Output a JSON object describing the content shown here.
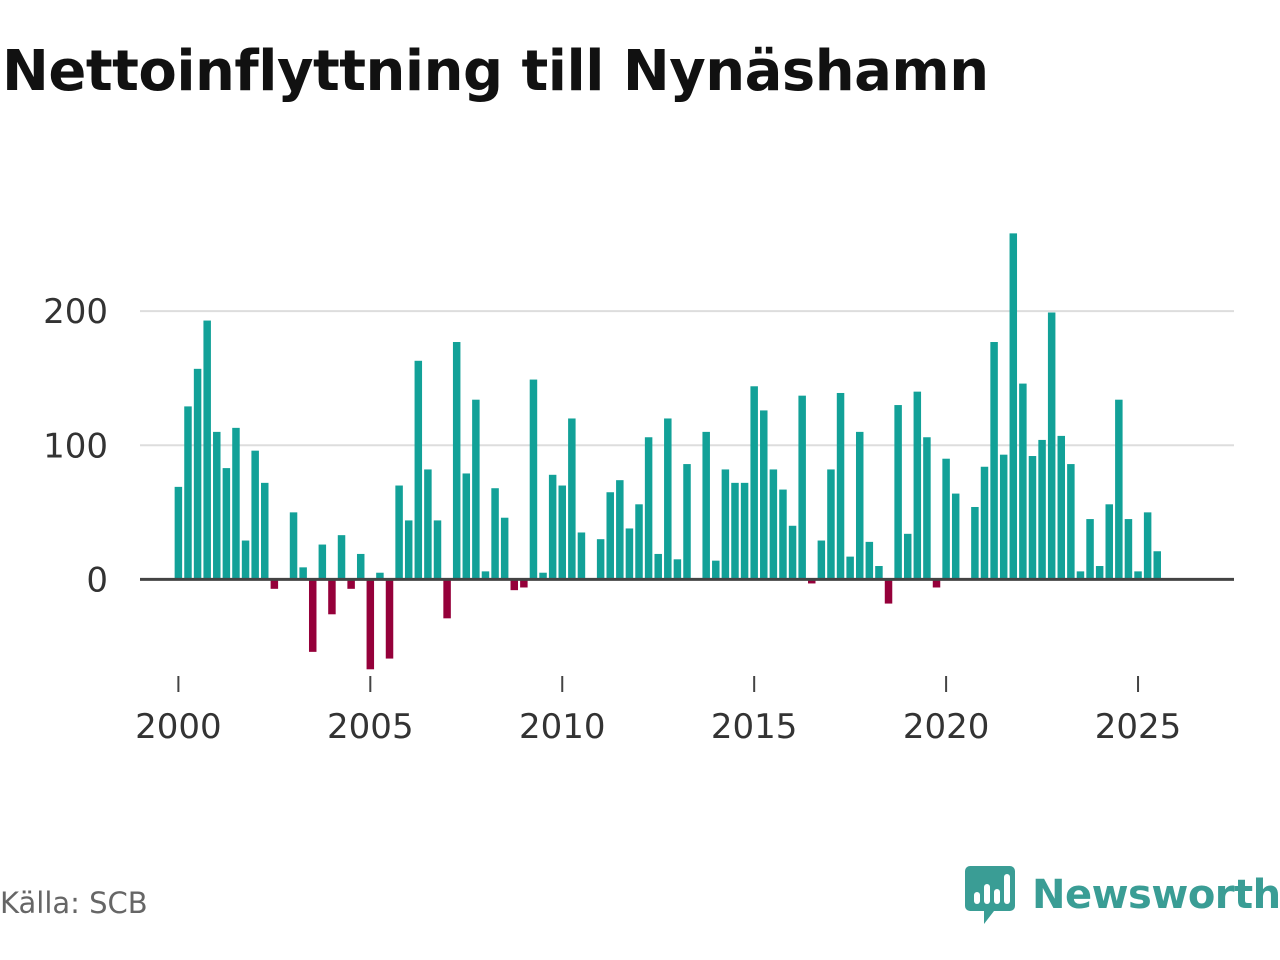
{
  "title": "Nettoinflyttning till Nynäshamn",
  "source": "Källa: SCB",
  "brand": {
    "name": "Newsworthy",
    "icon": "newsworthy-logo-icon",
    "color": "#3a9d95"
  },
  "colors": {
    "positive": "#12a198",
    "negative": "#95003a",
    "grid": "#dddddd",
    "baseline": "#444444"
  },
  "chart_data": {
    "type": "bar",
    "title": "Nettoinflyttning till Nynäshamn",
    "xlabel": "",
    "ylabel": "",
    "xlim": [
      1999,
      2027.5
    ],
    "ylim": [
      -72,
      262
    ],
    "yticks": [
      0,
      100,
      200
    ],
    "xticks": [
      2000,
      2005,
      2010,
      2015,
      2020,
      2025
    ],
    "grid": true,
    "start": 2000,
    "period": "quarter",
    "values": [
      69,
      129,
      157,
      193,
      110,
      83,
      113,
      29,
      96,
      72,
      -7,
      0,
      50,
      9,
      -54,
      26,
      -26,
      33,
      -7,
      19,
      -67,
      5,
      -59,
      70,
      44,
      163,
      82,
      44,
      -29,
      177,
      79,
      134,
      6,
      68,
      46,
      -8,
      -6,
      149,
      5,
      78,
      70,
      120,
      35,
      0,
      30,
      65,
      74,
      38,
      56,
      106,
      19,
      120,
      15,
      86,
      0,
      110,
      14,
      82,
      72,
      72,
      144,
      126,
      82,
      67,
      40,
      137,
      -3,
      29,
      82,
      139,
      17,
      110,
      28,
      10,
      -18,
      130,
      34,
      140,
      106,
      -6,
      90,
      64,
      0,
      54,
      84,
      177,
      93,
      258,
      146,
      92,
      104,
      199,
      107,
      86,
      6,
      45,
      10,
      56,
      134,
      45,
      6,
      50,
      21
    ]
  }
}
